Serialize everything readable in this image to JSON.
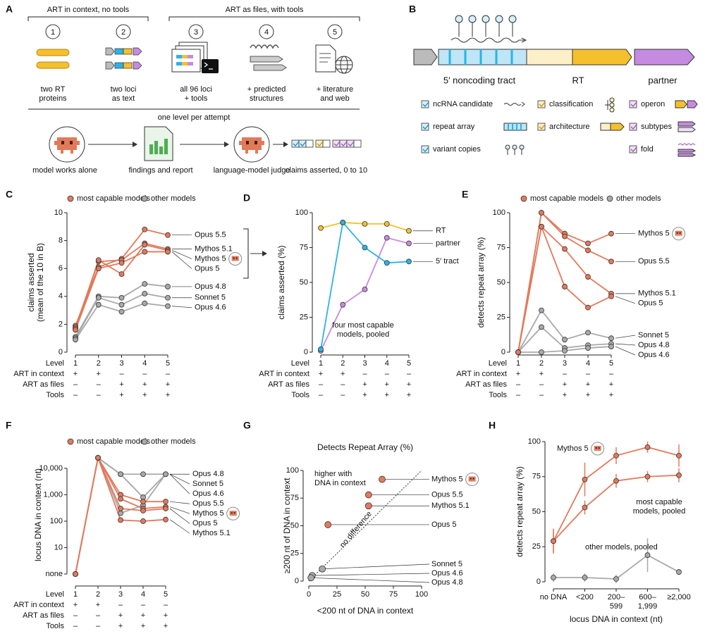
{
  "diagram_a": {
    "label": "A",
    "group_left": "ART in context, no tools",
    "group_right": "ART as files, with tools",
    "steps": [
      {
        "number": 1,
        "caption": [
          "two RT",
          "proteins"
        ]
      },
      {
        "number": 2,
        "caption": [
          "two loci",
          "as text"
        ]
      },
      {
        "number": 3,
        "caption": [
          "all 96 loci",
          "+ tools"
        ]
      },
      {
        "number": 4,
        "caption": [
          "+ predicted",
          "structures"
        ]
      },
      {
        "number": 5,
        "caption": [
          "+ literature",
          "and web"
        ]
      }
    ],
    "flow_title": "one level per attempt",
    "flow": [
      "model works alone",
      "findings and report",
      "language-model judge",
      "claims asserted, 0 to 10"
    ]
  },
  "diagram_b": {
    "label": "B",
    "regions": [
      "5′ noncoding tract",
      "RT",
      "partner"
    ],
    "legend": [
      "ncRNA candidate",
      "repeat array",
      "variant copies",
      "classification",
      "architecture",
      "operon",
      "subtypes",
      "fold"
    ]
  },
  "chart_data": [
    {
      "label": "C",
      "type": "line",
      "ylabel": [
        "claims asserted",
        "(mean of the 10 in B)"
      ],
      "xlabel": "Level",
      "categories": [
        "1",
        "2",
        "3",
        "4",
        "5"
      ],
      "ylim": [
        0,
        10
      ],
      "yticks": [
        0,
        2,
        4,
        6,
        8,
        10
      ],
      "legend": [
        {
          "name": "most capable models",
          "color": "#e27a5c"
        },
        {
          "name": "other models",
          "color": "#a9a9a9"
        }
      ],
      "conditions": [
        {
          "name": "ART in context",
          "marks": [
            "+",
            "+",
            "–",
            "–",
            "–"
          ]
        },
        {
          "name": "ART as files",
          "marks": [
            "–",
            "–",
            "+",
            "+",
            "+"
          ]
        },
        {
          "name": "Tools",
          "marks": [
            "–",
            "–",
            "+",
            "+",
            "+"
          ]
        }
      ],
      "series": [
        {
          "name": "Opus 4.8",
          "color": "#a9a9a9",
          "values": [
            1.1,
            4.0,
            3.9,
            4.9,
            4.7
          ]
        },
        {
          "name": "Sonnet 5",
          "color": "#a9a9a9",
          "values": [
            1.0,
            3.9,
            3.4,
            4.2,
            3.9
          ]
        },
        {
          "name": "Opus 4.6",
          "color": "#a9a9a9",
          "values": [
            0.9,
            3.4,
            2.9,
            3.5,
            3.3
          ]
        },
        {
          "name": "Opus 5.5",
          "color": "#e27a5c",
          "values": [
            1.9,
            6.1,
            6.7,
            8.8,
            8.4
          ]
        },
        {
          "name": "Mythos 5.1",
          "color": "#e27a5c",
          "values": [
            1.8,
            6.5,
            6.6,
            7.8,
            7.4
          ]
        },
        {
          "name": "Mythos 5",
          "color": "#e27a5c",
          "badge": true,
          "values": [
            1.7,
            6.6,
            5.6,
            7.7,
            7.3
          ]
        },
        {
          "name": "Opus 5",
          "color": "#e27a5c",
          "values": [
            1.6,
            6.0,
            6.4,
            7.2,
            7.2
          ]
        }
      ]
    },
    {
      "label": "D",
      "type": "line",
      "ylabel": "claims asserted (%)",
      "xlabel": "Level",
      "categories": [
        "1",
        "2",
        "3",
        "4",
        "5"
      ],
      "ylim": [
        0,
        100
      ],
      "yticks": [
        0,
        25,
        50,
        75,
        100
      ],
      "annotation": [
        "four most capable",
        "models, pooled"
      ],
      "conditions": [
        {
          "name": "ART in context",
          "marks": [
            "+",
            "+",
            "–",
            "–",
            "–"
          ]
        },
        {
          "name": "ART as files",
          "marks": [
            "–",
            "–",
            "+",
            "+",
            "+"
          ]
        },
        {
          "name": "Tools",
          "marks": [
            "–",
            "–",
            "+",
            "+",
            "+"
          ]
        }
      ],
      "series": [
        {
          "name": "RT",
          "color": "#f2c12e",
          "values": [
            89,
            93,
            92,
            92,
            87
          ]
        },
        {
          "name": "partner",
          "color": "#c58be0",
          "values": [
            1,
            34,
            45,
            82,
            78
          ]
        },
        {
          "name": "5′ tract",
          "color": "#2bb3e6",
          "values": [
            2,
            93,
            75,
            64,
            65
          ]
        }
      ]
    },
    {
      "label": "E",
      "type": "line",
      "ylabel": "detects repeat array (%)",
      "xlabel": "Level",
      "categories": [
        "1",
        "2",
        "3",
        "4",
        "5"
      ],
      "ylim": [
        0,
        100
      ],
      "yticks": [
        0,
        25,
        50,
        75,
        100
      ],
      "legend": [
        {
          "name": "most capable models",
          "color": "#e27a5c"
        },
        {
          "name": "other models",
          "color": "#a9a9a9"
        }
      ],
      "conditions": [
        {
          "name": "ART in context",
          "marks": [
            "+",
            "+",
            "–",
            "–",
            "–"
          ]
        },
        {
          "name": "ART as files",
          "marks": [
            "–",
            "–",
            "+",
            "+",
            "+"
          ]
        },
        {
          "name": "Tools",
          "marks": [
            "–",
            "–",
            "+",
            "+",
            "+"
          ]
        }
      ],
      "series": [
        {
          "name": "Sonnet 5",
          "color": "#a9a9a9",
          "values": [
            0,
            30,
            9,
            14,
            10
          ]
        },
        {
          "name": "Opus 4.8",
          "color": "#a9a9a9",
          "values": [
            0,
            18,
            3,
            5,
            6
          ]
        },
        {
          "name": "Opus 4.6",
          "color": "#a9a9a9",
          "values": [
            0,
            0,
            1,
            3,
            4
          ]
        },
        {
          "name": "Mythos 5",
          "color": "#e27a5c",
          "badge": true,
          "values": [
            0,
            100,
            85,
            78,
            85
          ]
        },
        {
          "name": "Opus 5.5",
          "color": "#e27a5c",
          "values": [
            0,
            100,
            83,
            73,
            65
          ]
        },
        {
          "name": "Mythos 5.1",
          "color": "#e27a5c",
          "values": [
            0,
            90,
            74,
            54,
            42
          ]
        },
        {
          "name": "Opus 5",
          "color": "#e27a5c",
          "values": [
            0,
            90,
            47,
            32,
            40
          ]
        }
      ]
    },
    {
      "label": "F",
      "type": "line",
      "ylabel": "locus DNA in context (nt)",
      "xlabel": "Level",
      "yscale": "log",
      "categories": [
        "1",
        "2",
        "3",
        "4",
        "5"
      ],
      "ylim": [
        1,
        30000
      ],
      "yticks": [
        {
          "value": 1,
          "label": "none"
        },
        10,
        100,
        {
          "value": 1000,
          "label": "1,000"
        },
        {
          "value": 10000,
          "label": "10,000"
        }
      ],
      "legend": [
        {
          "name": "most capable models",
          "color": "#e27a5c"
        },
        {
          "name": "other models",
          "color": "#a9a9a9"
        }
      ],
      "conditions": [
        {
          "name": "ART in context",
          "marks": [
            "+",
            "+",
            "–",
            "–",
            "–"
          ]
        },
        {
          "name": "ART as files",
          "marks": [
            "–",
            "–",
            "+",
            "+",
            "+"
          ]
        },
        {
          "name": "Tools",
          "marks": [
            "–",
            "–",
            "+",
            "+",
            "+"
          ]
        }
      ],
      "series": [
        {
          "name": "Opus 4.8",
          "color": "#a9a9a9",
          "values": [
            1,
            25000,
            6000,
            6000,
            6000
          ]
        },
        {
          "name": "Sonnet 5",
          "color": "#a9a9a9",
          "values": [
            1,
            25000,
            6000,
            800,
            6000
          ]
        },
        {
          "name": "Opus 4.6",
          "color": "#a9a9a9",
          "values": [
            1,
            25000,
            200,
            400,
            6000
          ]
        },
        {
          "name": "Opus 5.5",
          "color": "#e27a5c",
          "values": [
            1,
            25000,
            1000,
            550,
            550
          ]
        },
        {
          "name": "Mythos 5",
          "color": "#e27a5c",
          "badge": true,
          "values": [
            1,
            25000,
            700,
            300,
            350
          ]
        },
        {
          "name": "Opus 5",
          "color": "#e27a5c",
          "values": [
            1,
            25000,
            300,
            250,
            300
          ]
        },
        {
          "name": "Mythos 5.1",
          "color": "#e27a5c",
          "values": [
            1,
            25000,
            110,
            100,
            115
          ]
        }
      ]
    },
    {
      "label": "G",
      "type": "scatter",
      "title": "Detects Repeat Array (%)",
      "xlabel": "<200 nt of DNA in context",
      "ylabel": "≥200 nt of DNA in context",
      "xlim": [
        0,
        100
      ],
      "ylim": [
        0,
        100
      ],
      "xticks": [
        0,
        25,
        50,
        75,
        100
      ],
      "yticks": [
        0,
        25,
        50,
        75,
        100
      ],
      "annotations": [
        [
          "higher with",
          "DNA in context"
        ],
        "no difference"
      ],
      "points": [
        {
          "name": "Mythos 5",
          "color": "#e27a5c",
          "badge": true,
          "x": 65,
          "y": 92
        },
        {
          "name": "Opus 5.5",
          "color": "#e27a5c",
          "x": 53,
          "y": 78
        },
        {
          "name": "Mythos 5.1",
          "color": "#e27a5c",
          "x": 53,
          "y": 68
        },
        {
          "name": "Opus 5",
          "color": "#e27a5c",
          "x": 17,
          "y": 51
        },
        {
          "name": "Sonnet 5",
          "color": "#a9a9a9",
          "x": 12,
          "y": 11
        },
        {
          "name": "Opus 4.6",
          "color": "#a9a9a9",
          "x": 3,
          "y": 5
        },
        {
          "name": "Opus 4.8",
          "color": "#a9a9a9",
          "x": 2,
          "y": 3
        }
      ]
    },
    {
      "label": "H",
      "type": "line",
      "ylabel": "detects repeat array (%)",
      "xlabel": "locus DNA in context (nt)",
      "categories": [
        "no DNA",
        "<200",
        [
          "200–",
          "599"
        ],
        [
          "600–",
          "1,999"
        ],
        "≥2,000"
      ],
      "ylim": [
        0,
        100
      ],
      "yticks": [
        0,
        25,
        50,
        75,
        100
      ],
      "series": [
        {
          "name": "Mythos 5",
          "color": "#e27a5c",
          "badge": true,
          "values": [
            29,
            73,
            90,
            96,
            90
          ],
          "errors": [
            9,
            12,
            6,
            4,
            8
          ]
        },
        {
          "name": [
            "most capable",
            "models, pooled"
          ],
          "color": "#e27a5c",
          "values": [
            29,
            53,
            72,
            75,
            76
          ],
          "errors": [
            8,
            5,
            5,
            4,
            5
          ]
        },
        {
          "name": "other models, pooled",
          "color": "#a9a9a9",
          "values": [
            3,
            3,
            2,
            19,
            7
          ],
          "errors": [
            3,
            3,
            3,
            12,
            2
          ]
        }
      ]
    }
  ]
}
